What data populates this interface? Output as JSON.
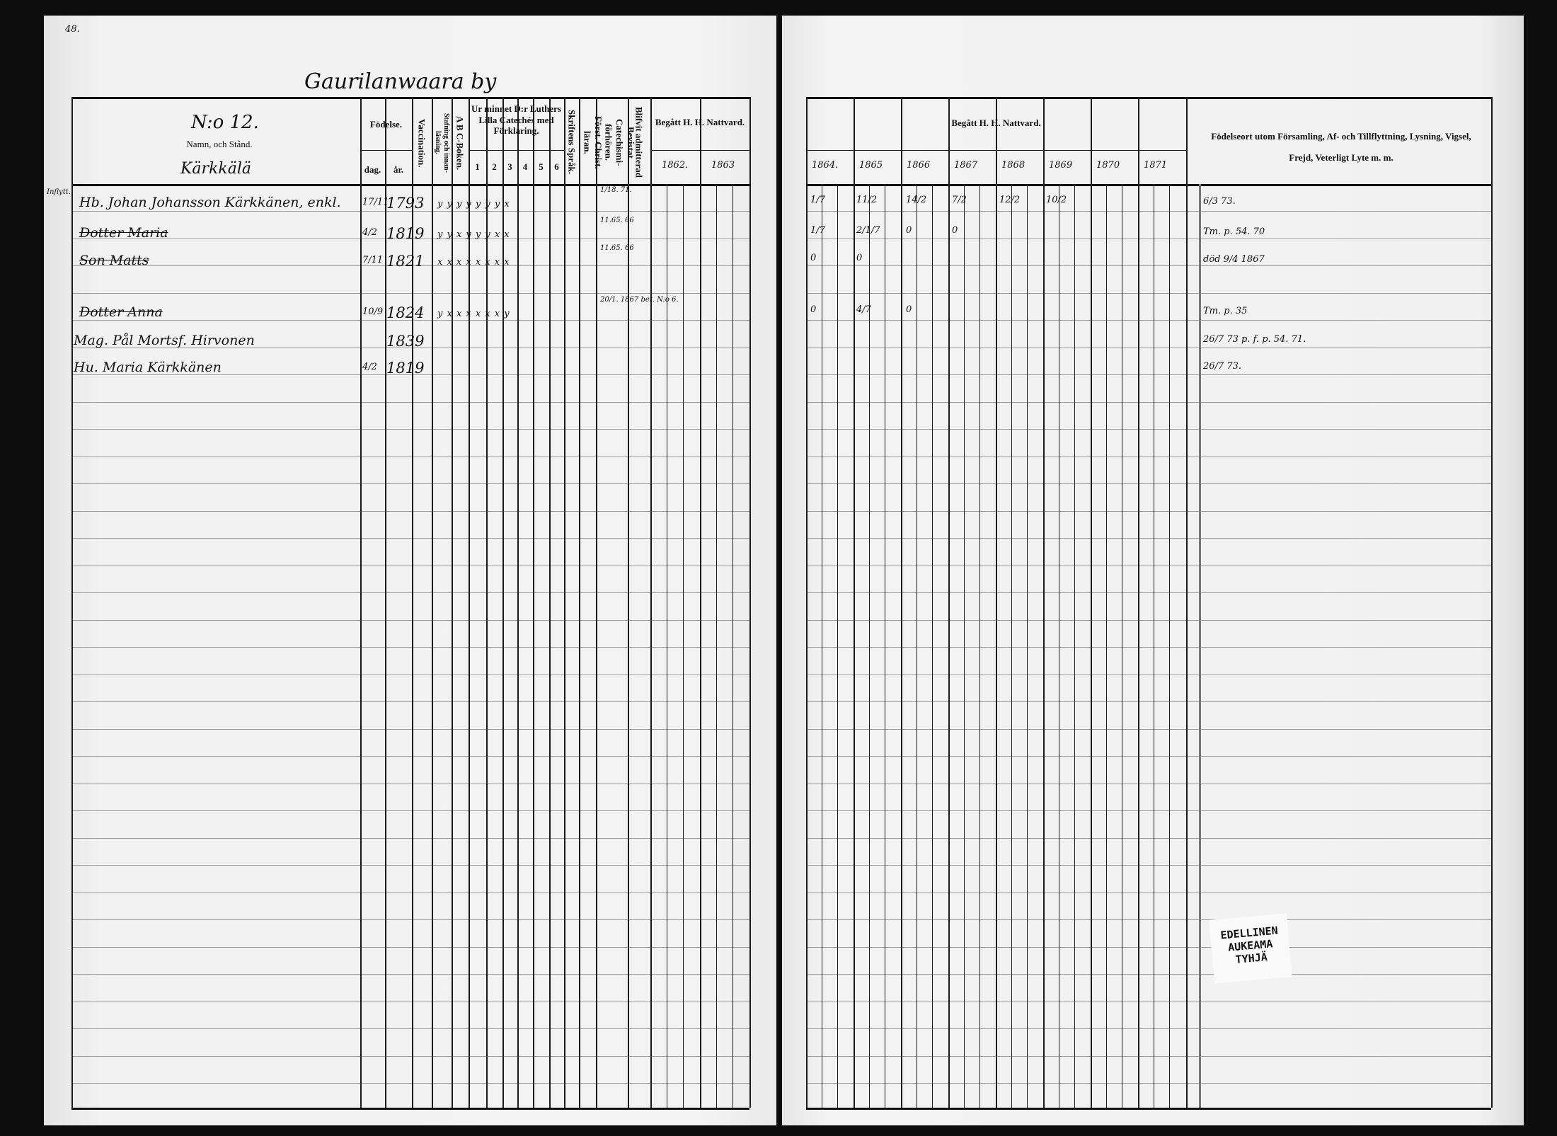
{
  "page_number": "48.",
  "village_title": "Gaurilanwaara by",
  "household": {
    "number": "N:o 12.",
    "name_heading": "Namn, och Stånd.",
    "farm": "Kärkkälä"
  },
  "left_headers": {
    "birth": "Födelse.",
    "day": "dag.",
    "year": "år.",
    "vaccination": "Vaccination.",
    "reading": "Stafning och innan-läsning.",
    "abc": "A B C-Boken.",
    "catechism": "Ur minnet D:r Luthers Lilla Catechés med Förklaring.",
    "catechism_parts": [
      "1",
      "2",
      "3",
      "4",
      "5",
      "6"
    ],
    "scripture": "Skriftens Språk.",
    "christianity": "Först. Christ. läran.",
    "examinations": "Bevistat Catechismi-förhören.",
    "admitted": "Blifvit admitterad",
    "communion": "Begått H. H. Nattvard.",
    "communion_years": [
      "1862.",
      "1863"
    ]
  },
  "right_headers": {
    "communion": "Begått H. H. Nattvard.",
    "communion_years": [
      "1864.",
      "1865",
      "1866",
      "1867",
      "1868",
      "1869",
      "1870",
      "1871"
    ],
    "remarks": "Födelseort utom Församling, Af- och Tillflyttning, Lysning, Vigsel, Frejd, Veterligt Lyte m. m."
  },
  "entries": [
    {
      "name": "Hb. Johan Johansson Kärkkänen, enkl.",
      "day": "17/11",
      "year": "1793",
      "marks": "y  y  y  y  y  y  y  x",
      "exam": "1/18. 71.",
      "right_marks": [
        "1/7",
        "11/2",
        "14/2",
        "7/2",
        "12/2",
        "10/2"
      ],
      "remark": "6/3 73.",
      "struck": false
    },
    {
      "name": "Dotter Maria",
      "day": "4/2",
      "year": "1819",
      "marks": "y  y  x  y  y  y  x  x",
      "exam": "11.65. 66",
      "right_marks": [
        "1/7",
        "2/1/7",
        "0",
        "0"
      ],
      "remark": "Tm. p. 54. 70",
      "struck": true
    },
    {
      "name": "Son Matts",
      "day": "7/11",
      "year": "1821",
      "marks": "x  x  x  x  x  x  x  x",
      "exam": "11.65. 66",
      "right_marks": [
        "0",
        "0"
      ],
      "remark": "död 9/4 1867",
      "struck": true
    },
    {
      "name": "Dotter Anna",
      "day": "10/9",
      "year": "1824",
      "marks": "y  x  x  x  x  x  x  y",
      "exam": "20/1. 1867 bet. N:o 6.",
      "right_marks": [
        "0",
        "4/7",
        "0"
      ],
      "remark": "Tm. p. 35",
      "struck": true
    },
    {
      "name": "Mag. Pål Mortsf. Hirvonen",
      "day": "",
      "year": "1839",
      "marks": "",
      "exam": "",
      "right_marks": [],
      "remark": "26/7 73 p. f. p. 54. 71.",
      "struck": false
    },
    {
      "name": "Hu. Maria Kärkkänen",
      "day": "4/2",
      "year": "1819",
      "marks": "",
      "exam": "",
      "right_marks": [],
      "remark": "26/7 73.",
      "struck": false
    }
  ],
  "margin_note": "Inflytt.",
  "stamp_lines": [
    "EDELLINEN",
    "AUKEAMA",
    "TYHJÄ"
  ],
  "colors": {
    "paper": "#efefef",
    "ink": "#111111",
    "background": "#0c0c0c"
  }
}
